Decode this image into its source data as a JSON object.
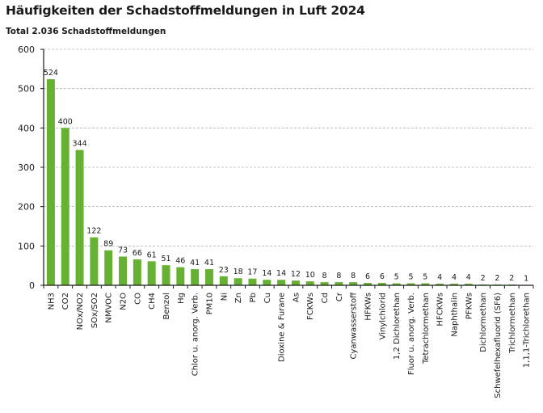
{
  "chart_data": {
    "type": "bar",
    "title": "Häufigkeiten der Schadstoffmeldungen in Luft 2024",
    "subtitle": "Total 2.036 Schadstoffmeldungen",
    "xlabel": "",
    "ylabel": "",
    "ylim": [
      0,
      600
    ],
    "yticks": [
      0,
      100,
      200,
      300,
      400,
      500,
      600
    ],
    "grid": true,
    "legend": "none",
    "bar_color": "#66b132",
    "categories": [
      "NH3",
      "CO2",
      "NOx/NO2",
      "SOx/SO2",
      "NMVOC",
      "N2O",
      "CO",
      "CH4",
      "Benzol",
      "Hg",
      "Chlor u. anorg. Verb.",
      "PM10",
      "Ni",
      "Zn",
      "Pb",
      "Cu",
      "Dioxine & Furane",
      "As",
      "FCKWs",
      "Cd",
      "Cr",
      "Cyanwasserstoff",
      "HFKWs",
      "Vinylchlorid",
      "1,2 Dichlorethan",
      "Fluor u. anorg. Verb.",
      "Tetrachlormethan",
      "HFCKWs",
      "Naphthalin",
      "PFKWs",
      "Dichlormethan",
      "Schwefelhexafluorid (SF6)",
      "Trichlormethan",
      "1,1,1-Trichlorethan"
    ],
    "values": [
      524,
      400,
      344,
      122,
      89,
      73,
      66,
      61,
      51,
      46,
      41,
      41,
      23,
      18,
      17,
      14,
      14,
      12,
      10,
      8,
      8,
      8,
      6,
      6,
      5,
      5,
      5,
      4,
      4,
      4,
      2,
      2,
      2,
      1
    ]
  }
}
